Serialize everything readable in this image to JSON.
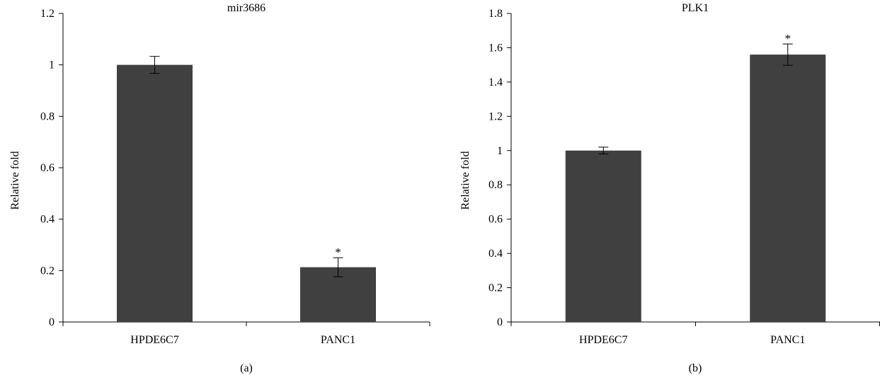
{
  "chart_data": [
    {
      "type": "bar",
      "panel_label": "(a)",
      "title": "mir3686",
      "ylabel": "Relative fold",
      "xlabel": "",
      "categories": [
        "HPDE6C7",
        "PANC1"
      ],
      "values": [
        1.0,
        0.213
      ],
      "errors": [
        0.033,
        0.037
      ],
      "significance": [
        "",
        "*"
      ],
      "ylim": [
        0,
        1.2
      ],
      "yticks": [
        0,
        0.2,
        0.4,
        0.6,
        0.8,
        1,
        1.2
      ],
      "ytick_labels": [
        "0",
        "0.2",
        "0.4",
        "0.6",
        "0.8",
        "1",
        "1.2"
      ],
      "bar_color": "#404040",
      "grid": false
    },
    {
      "type": "bar",
      "panel_label": "(b)",
      "title": "PLK1",
      "ylabel": "Relative fold",
      "xlabel": "",
      "categories": [
        "HPDE6C7",
        "PANC1"
      ],
      "values": [
        1.0,
        1.56
      ],
      "errors": [
        0.02,
        0.062
      ],
      "significance": [
        "",
        "*"
      ],
      "ylim": [
        0,
        1.8
      ],
      "yticks": [
        0,
        0.2,
        0.4,
        0.6,
        0.8,
        1,
        1.2,
        1.4,
        1.6,
        1.8
      ],
      "ytick_labels": [
        "0",
        "0.2",
        "0.4",
        "0.6",
        "0.8",
        "1",
        "1.2",
        "1.4",
        "1.6",
        "1.8"
      ],
      "bar_color": "#404040",
      "grid": false
    }
  ]
}
